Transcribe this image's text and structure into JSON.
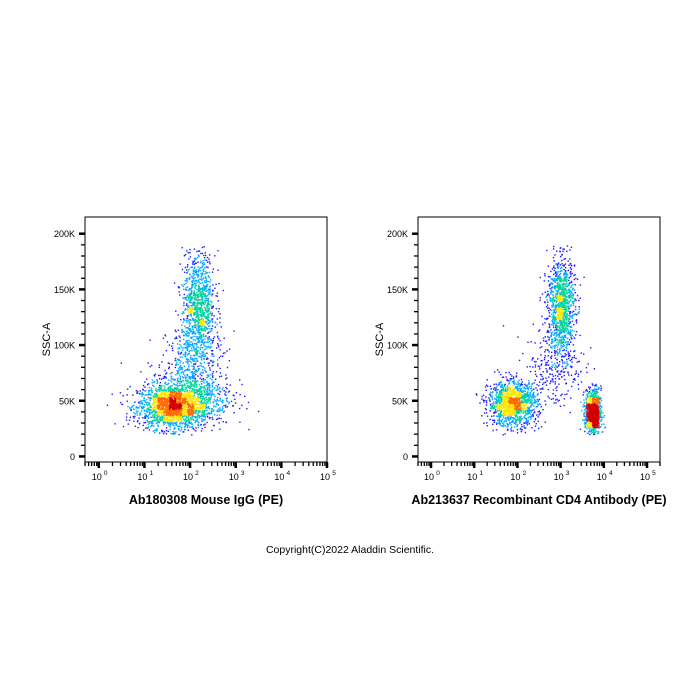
{
  "figure": {
    "copyright": "Copyright(C)2022 Aladdin Scientific."
  },
  "chart_data": [
    {
      "type": "scatter",
      "subtype": "flow-cytometry-density-dot-plot",
      "title": "",
      "xlabel": "Ab180308 Mouse IgG (PE)",
      "ylabel": "SSC-A",
      "x_scale": "log",
      "xlim": [
        0.5,
        100000
      ],
      "ylim": [
        -5000,
        215000
      ],
      "x_ticks": [
        1,
        10,
        100,
        1000,
        10000,
        100000
      ],
      "x_tick_labels": [
        "10",
        "10",
        "10",
        "10",
        "10",
        "10"
      ],
      "x_tick_exponents": [
        "0",
        "1",
        "2",
        "3",
        "4",
        "5"
      ],
      "y_ticks": [
        0,
        50000,
        100000,
        150000,
        200000
      ],
      "y_tick_labels": [
        "0",
        "50K",
        "100K",
        "150K",
        "200K"
      ],
      "grid": false,
      "density_colors": [
        "#1a1aff",
        "#00a6ff",
        "#00d2a0",
        "#ffe600",
        "#ff6a00",
        "#d40000"
      ],
      "populations": [
        {
          "x_center": 40,
          "x_log_spread": 0.38,
          "y_center": 45000,
          "y_spread": 10000,
          "events": 1700
        },
        {
          "x_center": 100,
          "x_log_spread": 0.45,
          "y_center": 55000,
          "y_spread": 14000,
          "events": 700
        },
        {
          "x_center": 150,
          "x_log_spread": 0.18,
          "y_center": 135000,
          "y_spread": 24000,
          "events": 1000
        },
        {
          "x_center": 120,
          "x_log_spread": 0.3,
          "y_center": 90000,
          "y_spread": 14000,
          "events": 300
        }
      ]
    },
    {
      "type": "scatter",
      "subtype": "flow-cytometry-density-dot-plot",
      "title": "",
      "xlabel": "Ab213637 Recombinant CD4 Antibody (PE)",
      "ylabel": "SSC-A",
      "x_scale": "log",
      "xlim": [
        0.5,
        200000
      ],
      "ylim": [
        -5000,
        215000
      ],
      "x_ticks": [
        1,
        10,
        100,
        1000,
        10000,
        100000
      ],
      "x_tick_labels": [
        "10",
        "10",
        "10",
        "10",
        "10",
        "10"
      ],
      "x_tick_exponents": [
        "0",
        "1",
        "2",
        "3",
        "4",
        "5"
      ],
      "y_ticks": [
        0,
        50000,
        100000,
        150000,
        200000
      ],
      "y_tick_labels": [
        "0",
        "50K",
        "100K",
        "150K",
        "200K"
      ],
      "grid": false,
      "density_colors": [
        "#1a1aff",
        "#00a6ff",
        "#00d2a0",
        "#ffe600",
        "#ff6a00",
        "#d40000"
      ],
      "populations": [
        {
          "x_center": 75,
          "x_log_spread": 0.28,
          "y_center": 48000,
          "y_spread": 10000,
          "events": 1300
        },
        {
          "x_center": 1000,
          "x_log_spread": 0.16,
          "y_center": 135000,
          "y_spread": 22000,
          "events": 1100
        },
        {
          "x_center": 5500,
          "x_log_spread": 0.09,
          "y_center": 40000,
          "y_spread": 10000,
          "events": 900
        },
        {
          "x_center": 700,
          "x_log_spread": 0.35,
          "y_center": 80000,
          "y_spread": 18000,
          "events": 250
        }
      ]
    }
  ]
}
